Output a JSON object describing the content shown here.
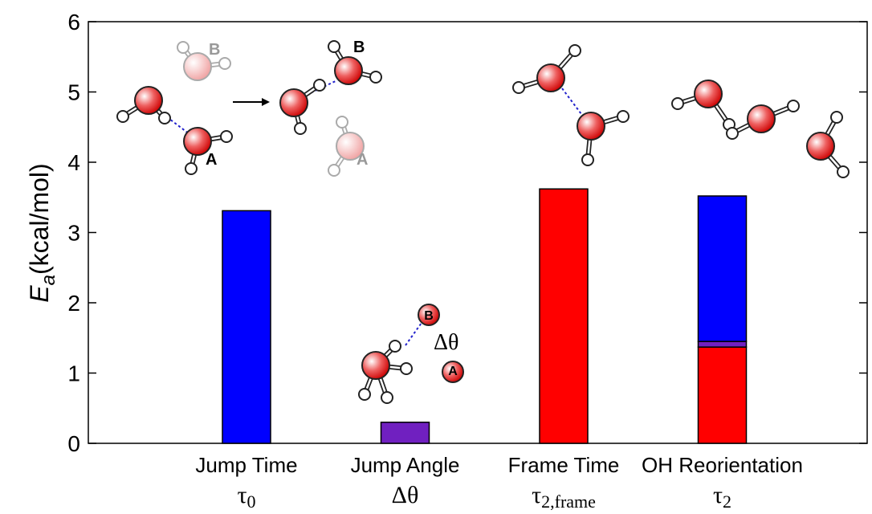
{
  "chart_data": {
    "type": "stacked_bar",
    "categories": [
      "Jump Time",
      "Jump  Angle",
      "Frame Time",
      "OH Reorientation"
    ],
    "symbols": [
      {
        "base": "τ",
        "sub": "0"
      },
      {
        "base": "Δθ",
        "sub": null
      },
      {
        "base": "τ",
        "sub": "2,frame"
      },
      {
        "base": "τ",
        "sub": "2"
      }
    ],
    "series": [
      {
        "color": "#ff0000",
        "values": [
          null,
          null,
          3.62,
          1.37
        ]
      },
      {
        "color": "#7020c0",
        "values": [
          null,
          0.3,
          null,
          0.08
        ]
      },
      {
        "color": "#0000ff",
        "values": [
          3.31,
          null,
          null,
          2.07
        ]
      }
    ],
    "ylabel": {
      "main": "E",
      "sub": "a",
      "unit": "(kcal/mol)"
    },
    "ylim": [
      0,
      6
    ],
    "yticks": [
      0,
      1,
      2,
      3,
      4,
      5,
      6
    ],
    "annotations": [
      "B",
      "A",
      "B",
      "A",
      "B",
      "A",
      "Δθ"
    ]
  }
}
